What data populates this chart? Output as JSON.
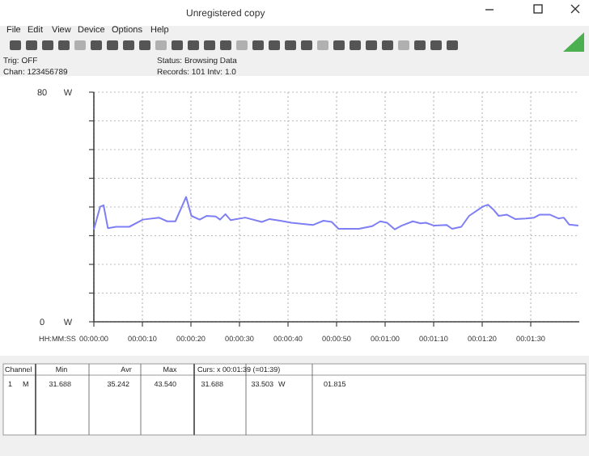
{
  "chart_data": {
    "type": "line",
    "title": "Unregistered copy",
    "xlabel": "HH:MM:SS",
    "ylabel": "W",
    "x": [
      0,
      1.3,
      2,
      2.9,
      4.6,
      7.3,
      10.1,
      13.4,
      15.1,
      16.8,
      19,
      20.1,
      21.8,
      23.2,
      25.1,
      26,
      27.1,
      28.2,
      31.2,
      34.6,
      36.2,
      38.4,
      40.7,
      45.1,
      47.3,
      49,
      50.4,
      54.6,
      57.3,
      59,
      60.4,
      62,
      63.4,
      65.7,
      67.3,
      68.4,
      70.1,
      72.7,
      73.8,
      75.7,
      77.3,
      80.1,
      81.2,
      82.3,
      83.4,
      85.1,
      86.8,
      89,
      90.7,
      91.8,
      94,
      95.7,
      96.8,
      97.9,
      99.8
    ],
    "series": [
      {
        "color": "#7f7ff5",
        "values": [
          32.2,
          40.1,
          40.6,
          32.6,
          33.1,
          33.1,
          35.6,
          36.3,
          35.0,
          35.0,
          43.5,
          36.9,
          35.6,
          36.9,
          36.7,
          35.6,
          37.5,
          35.4,
          36.3,
          34.8,
          35.8,
          35.2,
          34.5,
          33.7,
          35.2,
          34.8,
          32.4,
          32.4,
          33.3,
          35.0,
          34.5,
          32.2,
          33.5,
          35.0,
          34.3,
          34.5,
          33.5,
          33.7,
          32.4,
          33.1,
          36.9,
          40.1,
          40.8,
          39.1,
          36.9,
          37.3,
          35.8,
          36.0,
          36.3,
          37.3,
          37.3,
          36.0,
          36.3,
          33.9,
          33.5
        ]
      }
    ],
    "xlim": [
      0,
      100
    ],
    "xticks": [
      {
        "value": 0,
        "label": "00:00:00"
      },
      {
        "value": 10,
        "label": "00:00:10"
      },
      {
        "value": 20,
        "label": "00:00:20"
      },
      {
        "value": 30,
        "label": "00:00:30"
      },
      {
        "value": 40,
        "label": "00:00:40"
      },
      {
        "value": 50,
        "label": "00:00:50"
      },
      {
        "value": 60,
        "label": "00:01:00"
      },
      {
        "value": 70,
        "label": "00:01:10"
      },
      {
        "value": 80,
        "label": "00:01:20"
      },
      {
        "value": 90,
        "label": "00:01:30"
      }
    ],
    "ylim": [
      0,
      80
    ],
    "yticks": [
      0,
      {
        "value": 10,
        "label": null
      },
      {
        "value": 20,
        "label": null
      },
      {
        "value": 30,
        "label": null
      },
      {
        "value": 40,
        "label": null
      },
      {
        "value": 50,
        "label": null
      },
      {
        "value": 60,
        "label": null
      },
      {
        "value": 70,
        "label": null
      },
      80
    ],
    "grid": true,
    "marker": "none",
    "line_style": "solid",
    "annotations": [
      "File",
      "Edit",
      "View",
      "Device",
      "Options",
      "Help",
      "Trig: OFF",
      "Chan: 123456789",
      "Status:  Browsing Data",
      "Records: 101  Intv: 1.0",
      "Channel",
      "Min",
      "Avr",
      "Max",
      "Curs: x 00:01:39 (=01:39)",
      "1",
      "M",
      "31.688",
      "35.242",
      "43.540",
      "31.688",
      "33.503",
      "W",
      "01.815"
    ]
  }
}
